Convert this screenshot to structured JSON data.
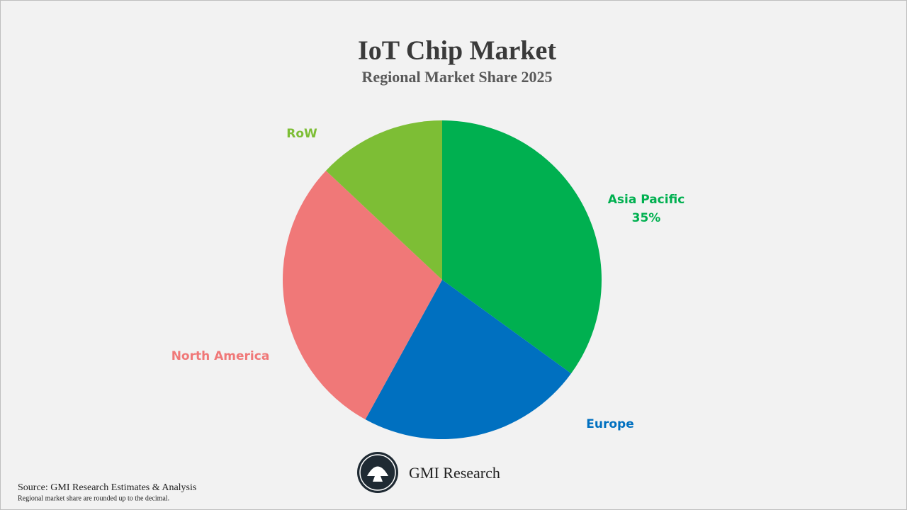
{
  "chart_data": {
    "type": "pie",
    "title": "IoT Chip Market",
    "subtitle": "Regional Market Share 2025",
    "categories": [
      "Asia Pacific",
      "Europe",
      "North America",
      "RoW"
    ],
    "values": [
      35,
      23,
      29,
      13
    ],
    "value_labels": [
      "35%",
      null,
      null,
      null
    ],
    "colors": [
      "#00b050",
      "#0070c0",
      "#f07878",
      "#7dbe35"
    ],
    "start_angle": 0,
    "direction": "clockwise"
  },
  "logo": "GMI Research",
  "source": "Source: GMI Research Estimates & Analysis",
  "note": "Regional market share are rounded up to the decimal."
}
